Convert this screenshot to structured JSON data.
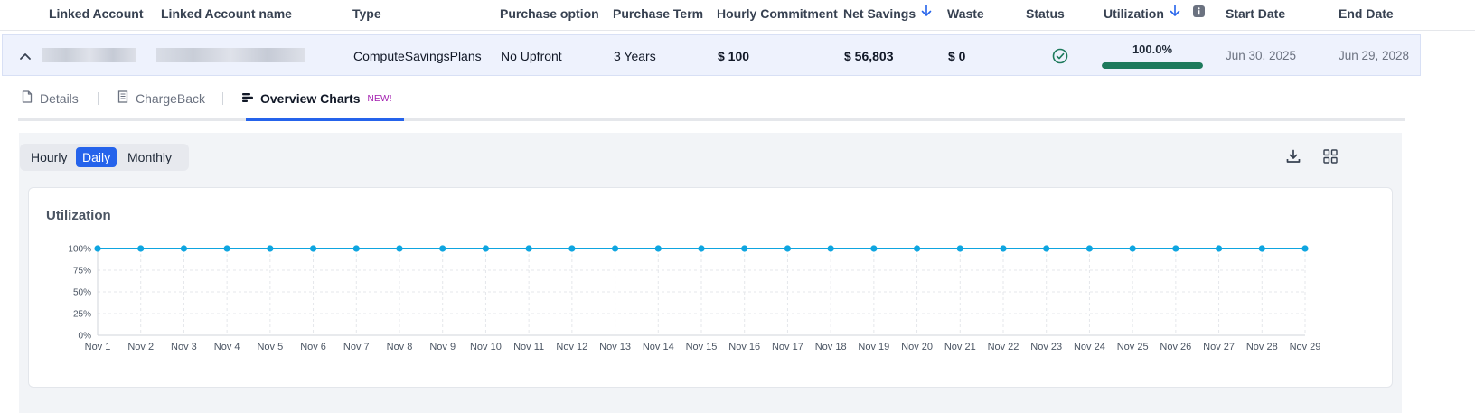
{
  "table": {
    "headers": {
      "linked_account": "Linked Account",
      "linked_account_name": "Linked Account name",
      "type": "Type",
      "purchase_option": "Purchase option",
      "purchase_term": "Purchase Term",
      "hourly_commitment": "Hourly Commitment",
      "net_savings": "Net Savings",
      "waste": "Waste",
      "status": "Status",
      "utilization": "Utilization",
      "start_date": "Start Date",
      "end_date": "End Date"
    },
    "row": {
      "type": "ComputeSavingsPlans",
      "purchase_option": "No Upfront",
      "purchase_term": "3 Years",
      "hourly_commitment": "$ 100",
      "net_savings": "$ 56,803",
      "waste": "$ 0",
      "status_icon": "check-circle-icon",
      "utilization_label": "100.0%",
      "utilization_value": 1.0,
      "start_date": "Jun 30, 2025",
      "end_date": "Jun 29, 2028"
    }
  },
  "tabs": [
    {
      "label": "Details",
      "icon": "document-icon"
    },
    {
      "label": "ChargeBack",
      "icon": "receipt-icon"
    },
    {
      "label": "Overview Charts",
      "icon": "bar-chart-icon",
      "badge": "NEW!",
      "active": true
    }
  ],
  "granularity": {
    "options": [
      "Hourly",
      "Daily",
      "Monthly"
    ],
    "selected": "Daily"
  },
  "toolbar": {
    "download_icon": "download-icon",
    "layout_icon": "grid-layout-icon"
  },
  "colors": {
    "accent": "#2563eb",
    "utilization_bar": "#1d7a5c",
    "series_line": "#0ea5e0",
    "badge": "#a21caf",
    "status_ok": "#1d7a5c"
  },
  "chart_data": {
    "type": "line",
    "title": "Utilization",
    "categories": [
      "Nov 1",
      "Nov 2",
      "Nov 3",
      "Nov 4",
      "Nov 5",
      "Nov 6",
      "Nov 7",
      "Nov 8",
      "Nov 9",
      "Nov 10",
      "Nov 11",
      "Nov 12",
      "Nov 13",
      "Nov 14",
      "Nov 15",
      "Nov 16",
      "Nov 17",
      "Nov 18",
      "Nov 19",
      "Nov 20",
      "Nov 21",
      "Nov 22",
      "Nov 23",
      "Nov 24",
      "Nov 25",
      "Nov 26",
      "Nov 27",
      "Nov 28",
      "Nov 29"
    ],
    "series": [
      {
        "values": [
          100,
          100,
          100,
          100,
          100,
          100,
          100,
          100,
          100,
          100,
          100,
          100,
          100,
          100,
          100,
          100,
          100,
          100,
          100,
          100,
          100,
          100,
          100,
          100,
          100,
          100,
          100,
          100,
          100
        ]
      }
    ],
    "ylim": [
      0,
      100
    ],
    "yticks": [
      0,
      25,
      50,
      75,
      100
    ],
    "ytick_labels": [
      "0%",
      "25%",
      "50%",
      "75%",
      "100%"
    ],
    "grid": true,
    "legend": "none"
  }
}
